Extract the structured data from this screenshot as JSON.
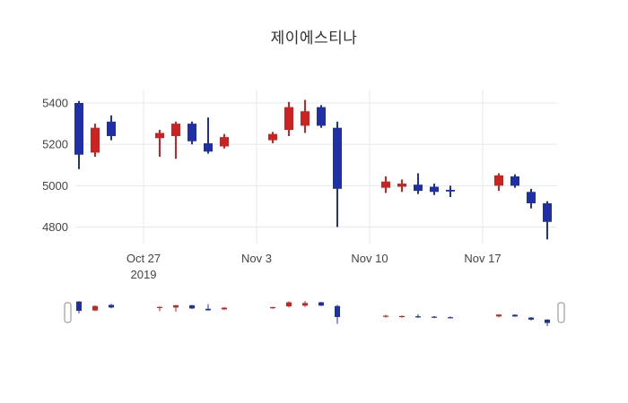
{
  "title_block": {
    "title": "제이에스티나"
  },
  "colors": {
    "increasing": "#cc2222",
    "decreasing": "#1f2fa8",
    "grid": "#e8e8e8",
    "tick_text": "#444444",
    "title_text": "#2f2f2f",
    "background": "#ffffff",
    "handle_fill": "#ffffff",
    "handle_border": "#8a8a8a"
  },
  "chart_data": {
    "type": "candlestick",
    "title": "제이에스티나",
    "legend": "none",
    "grid": true,
    "rangeslider": true,
    "x_axis": {
      "ticks": [
        {
          "label": "Oct 27",
          "sublabel": "2019",
          "date": "2019-10-27"
        },
        {
          "label": "Nov 3",
          "date": "2019-11-03"
        },
        {
          "label": "Nov 10",
          "date": "2019-11-10"
        },
        {
          "label": "Nov 17",
          "date": "2019-11-17"
        }
      ]
    },
    "y_axis": {
      "ticks": [
        5400,
        5200,
        5000,
        4800
      ],
      "range": [
        4720,
        5465
      ]
    },
    "candles": [
      {
        "date": "2019-10-23",
        "open": 5400,
        "high": 5410,
        "low": 5080,
        "close": 5150
      },
      {
        "date": "2019-10-24",
        "open": 5160,
        "high": 5300,
        "low": 5140,
        "close": 5280
      },
      {
        "date": "2019-10-25",
        "open": 5310,
        "high": 5340,
        "low": 5220,
        "close": 5240
      },
      {
        "date": "2019-10-28",
        "open": 5230,
        "high": 5270,
        "low": 5140,
        "close": 5255
      },
      {
        "date": "2019-10-29",
        "open": 5240,
        "high": 5310,
        "low": 5130,
        "close": 5300
      },
      {
        "date": "2019-10-30",
        "open": 5300,
        "high": 5310,
        "low": 5200,
        "close": 5215
      },
      {
        "date": "2019-10-31",
        "open": 5205,
        "high": 5330,
        "low": 5155,
        "close": 5165
      },
      {
        "date": "2019-11-01",
        "open": 5190,
        "high": 5250,
        "low": 5180,
        "close": 5235
      },
      {
        "date": "2019-11-04",
        "open": 5220,
        "high": 5260,
        "low": 5205,
        "close": 5250
      },
      {
        "date": "2019-11-05",
        "open": 5270,
        "high": 5405,
        "low": 5240,
        "close": 5380
      },
      {
        "date": "2019-11-06",
        "open": 5290,
        "high": 5415,
        "low": 5255,
        "close": 5360
      },
      {
        "date": "2019-11-07",
        "open": 5380,
        "high": 5390,
        "low": 5280,
        "close": 5290
      },
      {
        "date": "2019-11-08",
        "open": 5280,
        "high": 5310,
        "low": 4800,
        "close": 4985
      },
      {
        "date": "2019-11-11",
        "open": 4990,
        "high": 5045,
        "low": 4965,
        "close": 5020
      },
      {
        "date": "2019-11-12",
        "open": 4995,
        "high": 5030,
        "low": 4970,
        "close": 5010
      },
      {
        "date": "2019-11-13",
        "open": 5005,
        "high": 5060,
        "low": 4960,
        "close": 4975
      },
      {
        "date": "2019-11-14",
        "open": 4995,
        "high": 5010,
        "low": 4955,
        "close": 4970
      },
      {
        "date": "2019-11-15",
        "open": 4980,
        "high": 5000,
        "low": 4945,
        "close": 4972
      },
      {
        "date": "2019-11-18",
        "open": 5000,
        "high": 5060,
        "low": 4975,
        "close": 5050
      },
      {
        "date": "2019-11-19",
        "open": 5045,
        "high": 5055,
        "low": 4990,
        "close": 5000
      },
      {
        "date": "2019-11-20",
        "open": 4970,
        "high": 4985,
        "low": 4890,
        "close": 4915
      },
      {
        "date": "2019-11-21",
        "open": 4915,
        "high": 4925,
        "low": 4740,
        "close": 4825
      }
    ]
  }
}
